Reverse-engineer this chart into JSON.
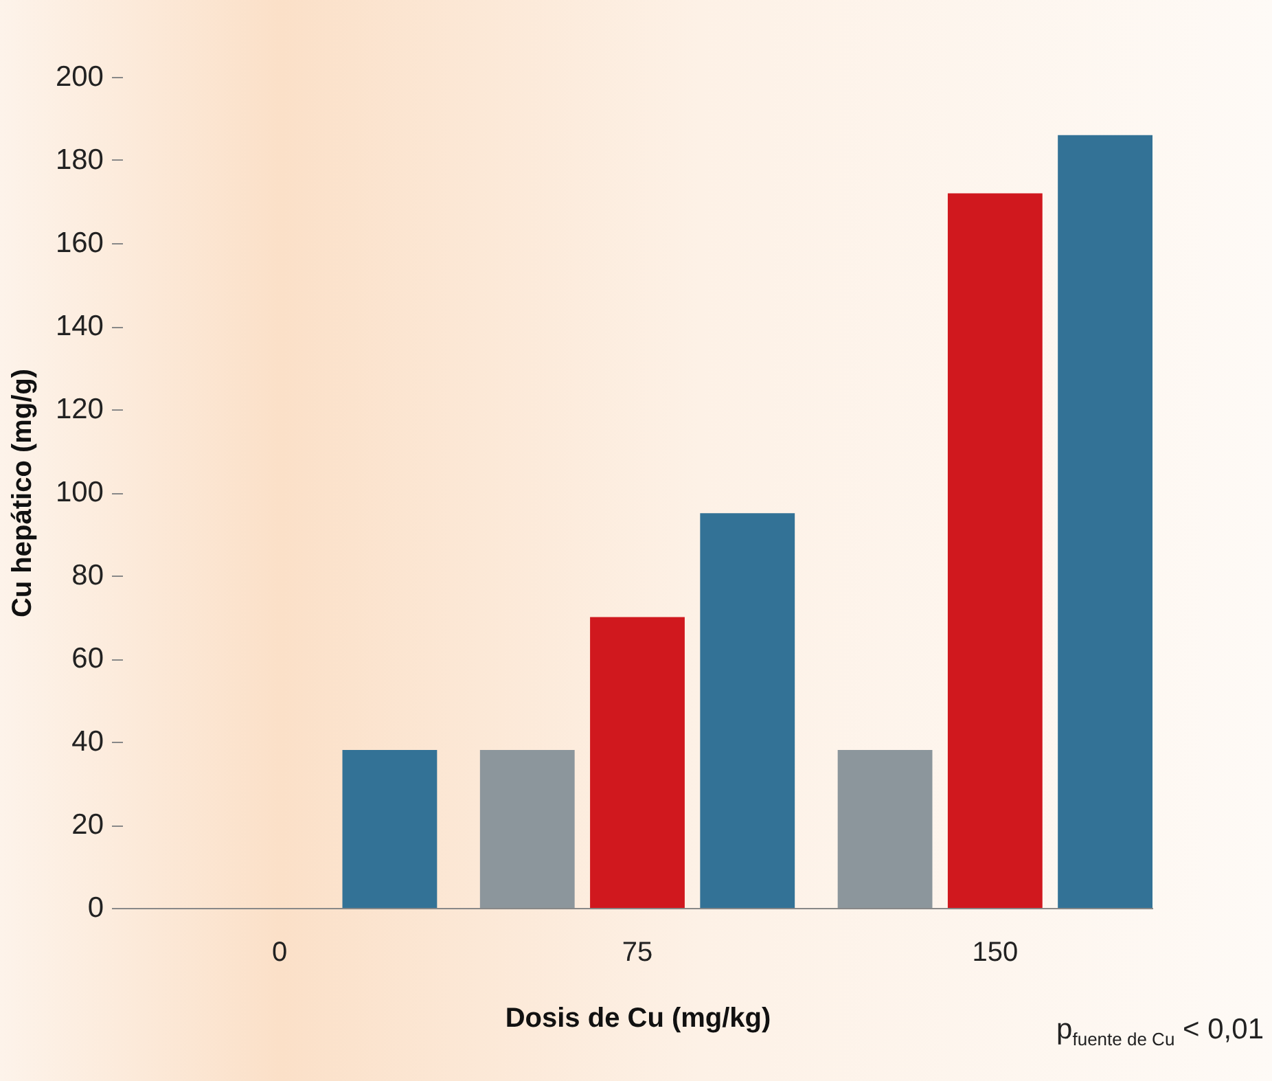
{
  "chart_data": {
    "type": "bar",
    "xlabel": "Dosis de Cu (mg/kg)",
    "ylabel": "Cu hepático (mg/g)",
    "categories": [
      "0",
      "75",
      "150"
    ],
    "series": [
      {
        "color": "#8c969c",
        "values": [
          null,
          38,
          38
        ]
      },
      {
        "color": "#d0181e",
        "values": [
          null,
          70,
          172
        ]
      },
      {
        "color": "#337296",
        "values": [
          38,
          95,
          186
        ]
      }
    ],
    "ylim": [
      0,
      200
    ],
    "yticks": [
      0,
      20,
      40,
      60,
      80,
      100,
      120,
      140,
      160,
      180,
      200
    ],
    "grid": false,
    "legend": false,
    "annotations": [
      "p$_{fuente de Cu}$ < 0,01"
    ]
  }
}
